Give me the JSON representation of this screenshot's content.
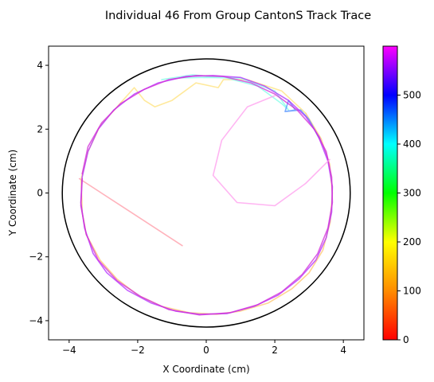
{
  "chart_data": {
    "type": "line",
    "title": "Individual 46 From Group CantonS Track Trace",
    "xlabel": "X Coordinate (cm)",
    "ylabel": "Y Coordinate (cm)",
    "xlim": [
      -4.6,
      4.6
    ],
    "ylim": [
      -4.6,
      4.6
    ],
    "xticks": [
      -4,
      -2,
      0,
      2,
      4
    ],
    "yticks": [
      -4,
      -2,
      0,
      2,
      4
    ],
    "xtick_labels": [
      "−4",
      "−2",
      "0",
      "2",
      "4"
    ],
    "ytick_labels": [
      "−4",
      "−2",
      "0",
      "2",
      "4"
    ],
    "arena_circle": {
      "cx": 0,
      "cy": 0,
      "r": 4.2,
      "color": "#000000"
    },
    "colorbar": {
      "colormap": "gist_rainbow",
      "range": [
        0,
        600
      ],
      "ticks": [
        0,
        100,
        200,
        300,
        400,
        500
      ],
      "tick_labels": [
        "0",
        "100",
        "200",
        "300",
        "400",
        "500"
      ],
      "stops": [
        "#ff0000",
        "#ff8c00",
        "#ffff00",
        "#00ff00",
        "#00ffff",
        "#0000ff",
        "#ff00ff"
      ]
    },
    "series": [
      {
        "t0": 0,
        "t1": 25,
        "color": "#ff9aa6",
        "points": [
          [
            -0.7,
            -1.65
          ],
          [
            -2.2,
            -0.6
          ],
          [
            -3.7,
            0.45
          ]
        ]
      },
      {
        "t0": 25,
        "t1": 110,
        "color": "#ffc66e",
        "points": [
          [
            -3.65,
            0.4
          ],
          [
            -3.62,
            -0.6
          ],
          [
            -3.5,
            -1.3
          ],
          [
            -3.1,
            -2.1
          ],
          [
            -2.6,
            -2.7
          ],
          [
            -2.0,
            -3.2
          ],
          [
            -1.3,
            -3.55
          ],
          [
            -0.5,
            -3.75
          ],
          [
            0.3,
            -3.8
          ],
          [
            1.0,
            -3.7
          ],
          [
            1.8,
            -3.45
          ],
          [
            2.5,
            -3.0
          ],
          [
            3.0,
            -2.5
          ],
          [
            3.4,
            -1.8
          ],
          [
            3.62,
            -0.9
          ],
          [
            3.68,
            0.0
          ],
          [
            3.6,
            0.9
          ],
          [
            3.35,
            1.7
          ],
          [
            2.9,
            2.5
          ]
        ]
      },
      {
        "t0": 110,
        "t1": 150,
        "color": "#ffe27a",
        "points": [
          [
            2.9,
            2.5
          ],
          [
            2.2,
            3.2
          ],
          [
            1.2,
            3.55
          ],
          [
            0.5,
            3.55
          ],
          [
            0.35,
            3.3
          ],
          [
            -0.3,
            3.45
          ],
          [
            -1.0,
            2.9
          ],
          [
            -1.5,
            2.7
          ],
          [
            -1.8,
            2.9
          ],
          [
            -2.1,
            3.3
          ],
          [
            -2.6,
            2.7
          ],
          [
            -3.1,
            2.1
          ],
          [
            -3.45,
            1.3
          ],
          [
            -3.65,
            0.45
          ]
        ]
      },
      {
        "t0": 300,
        "t1": 360,
        "color": "#7fffe8",
        "points": [
          [
            -1.3,
            3.55
          ],
          [
            -0.4,
            3.7
          ],
          [
            0.6,
            3.6
          ],
          [
            1.5,
            3.35
          ],
          [
            2.2,
            2.8
          ],
          [
            2.4,
            2.6
          ],
          [
            2.0,
            3.2
          ],
          [
            1.0,
            3.6
          ],
          [
            0.0,
            3.62
          ],
          [
            -1.0,
            3.6
          ]
        ]
      },
      {
        "t0": 400,
        "t1": 440,
        "color": "#4f8fff",
        "points": [
          [
            2.3,
            2.55
          ],
          [
            2.6,
            2.6
          ],
          [
            2.4,
            2.9
          ],
          [
            2.3,
            2.55
          ],
          [
            2.75,
            2.6
          ],
          [
            3.0,
            2.3
          ],
          [
            3.3,
            1.7
          ]
        ]
      },
      {
        "t0": 460,
        "t1": 600,
        "color": "#b12cff",
        "points": [
          [
            3.3,
            1.7
          ],
          [
            3.55,
            1.0
          ],
          [
            3.68,
            0.2
          ],
          [
            3.66,
            -0.6
          ],
          [
            3.5,
            -1.4
          ],
          [
            3.2,
            -2.1
          ],
          [
            2.7,
            -2.7
          ],
          [
            2.1,
            -3.2
          ],
          [
            1.4,
            -3.55
          ],
          [
            0.6,
            -3.78
          ],
          [
            -0.2,
            -3.8
          ],
          [
            -0.9,
            -3.7
          ],
          [
            -1.6,
            -3.45
          ],
          [
            -2.3,
            -3.05
          ],
          [
            -2.9,
            -2.5
          ],
          [
            -3.3,
            -1.9
          ],
          [
            -3.55,
            -1.1
          ],
          [
            -3.66,
            -0.3
          ],
          [
            -3.62,
            0.5
          ],
          [
            -3.45,
            1.3
          ],
          [
            -3.15,
            2.0
          ],
          [
            -2.7,
            2.6
          ],
          [
            -2.1,
            3.1
          ],
          [
            -1.4,
            3.45
          ],
          [
            -0.6,
            3.65
          ],
          [
            0.2,
            3.68
          ],
          [
            1.0,
            3.62
          ],
          [
            1.7,
            3.35
          ],
          [
            2.4,
            2.9
          ],
          [
            2.9,
            2.4
          ],
          [
            3.3,
            1.75
          ],
          [
            3.55,
            1.05
          ]
        ]
      },
      {
        "t0": 560,
        "t1": 600,
        "color": "#d12dd8",
        "points": [
          [
            -3.62,
            0.45
          ],
          [
            -3.66,
            -0.4
          ],
          [
            -3.5,
            -1.3
          ],
          [
            -3.15,
            -2.1
          ],
          [
            -2.6,
            -2.75
          ],
          [
            -1.9,
            -3.25
          ],
          [
            -1.1,
            -3.65
          ],
          [
            -0.2,
            -3.82
          ],
          [
            0.7,
            -3.75
          ],
          [
            1.5,
            -3.5
          ],
          [
            2.2,
            -3.1
          ],
          [
            2.8,
            -2.55
          ],
          [
            3.25,
            -1.9
          ],
          [
            3.55,
            -1.1
          ],
          [
            3.68,
            -0.3
          ],
          [
            3.66,
            0.5
          ],
          [
            3.5,
            1.3
          ],
          [
            3.15,
            2.0
          ],
          [
            2.65,
            2.6
          ],
          [
            2.0,
            3.1
          ],
          [
            1.3,
            3.45
          ],
          [
            0.5,
            3.65
          ],
          [
            -0.3,
            3.68
          ],
          [
            -1.1,
            3.55
          ],
          [
            -1.8,
            3.25
          ],
          [
            -2.5,
            2.8
          ],
          [
            -3.05,
            2.2
          ],
          [
            -3.45,
            1.45
          ],
          [
            -3.62,
            0.6
          ]
        ]
      },
      {
        "t0": 540,
        "t1": 600,
        "color": "#ff9cee",
        "points": [
          [
            3.6,
            1.05
          ],
          [
            2.9,
            0.3
          ],
          [
            2.0,
            -0.4
          ],
          [
            0.9,
            -0.3
          ],
          [
            0.2,
            0.55
          ],
          [
            0.45,
            1.65
          ],
          [
            1.2,
            2.7
          ],
          [
            2.0,
            3.05
          ]
        ]
      }
    ]
  }
}
